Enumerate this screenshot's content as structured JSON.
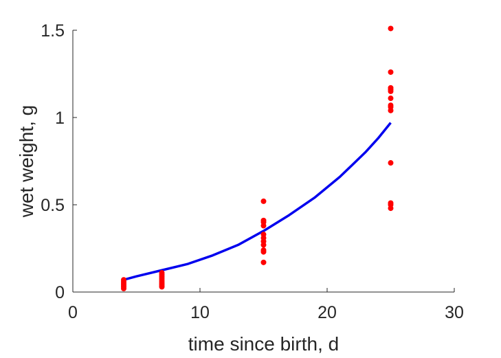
{
  "chart_data": {
    "type": "scatter",
    "title": "",
    "xlabel": "time since birth, d",
    "ylabel": "wet weight, g",
    "xlim": [
      0,
      30
    ],
    "ylim": [
      0,
      1.5
    ],
    "xticks": [
      "0",
      "10",
      "20",
      "30"
    ],
    "yticks": [
      "0",
      "0.5",
      "1",
      "1.5"
    ],
    "grid": false,
    "legend": "none",
    "series": [
      {
        "type": "scatter",
        "color": "#ff0000",
        "points": [
          {
            "x": 4,
            "y": 0.02
          },
          {
            "x": 4,
            "y": 0.03
          },
          {
            "x": 4,
            "y": 0.04
          },
          {
            "x": 4,
            "y": 0.05
          },
          {
            "x": 4,
            "y": 0.06
          },
          {
            "x": 4,
            "y": 0.07
          },
          {
            "x": 7,
            "y": 0.03
          },
          {
            "x": 7,
            "y": 0.04
          },
          {
            "x": 7,
            "y": 0.05
          },
          {
            "x": 7,
            "y": 0.06
          },
          {
            "x": 7,
            "y": 0.07
          },
          {
            "x": 7,
            "y": 0.08
          },
          {
            "x": 7,
            "y": 0.09
          },
          {
            "x": 7,
            "y": 0.1
          },
          {
            "x": 7,
            "y": 0.11
          },
          {
            "x": 15,
            "y": 0.17
          },
          {
            "x": 15,
            "y": 0.23
          },
          {
            "x": 15,
            "y": 0.24
          },
          {
            "x": 15,
            "y": 0.27
          },
          {
            "x": 15,
            "y": 0.29
          },
          {
            "x": 15,
            "y": 0.31
          },
          {
            "x": 15,
            "y": 0.33
          },
          {
            "x": 15,
            "y": 0.38
          },
          {
            "x": 15,
            "y": 0.4
          },
          {
            "x": 15,
            "y": 0.41
          },
          {
            "x": 15,
            "y": 0.52
          },
          {
            "x": 25,
            "y": 0.48
          },
          {
            "x": 25,
            "y": 0.5
          },
          {
            "x": 25,
            "y": 0.51
          },
          {
            "x": 25,
            "y": 0.74
          },
          {
            "x": 25,
            "y": 1.04
          },
          {
            "x": 25,
            "y": 1.06
          },
          {
            "x": 25,
            "y": 1.07
          },
          {
            "x": 25,
            "y": 1.11
          },
          {
            "x": 25,
            "y": 1.15
          },
          {
            "x": 25,
            "y": 1.16
          },
          {
            "x": 25,
            "y": 1.17
          },
          {
            "x": 25,
            "y": 1.26
          },
          {
            "x": 25,
            "y": 1.51
          }
        ]
      },
      {
        "type": "line",
        "color": "#0000ee",
        "points": [
          {
            "x": 4,
            "y": 0.07
          },
          {
            "x": 5,
            "y": 0.09
          },
          {
            "x": 7,
            "y": 0.125
          },
          {
            "x": 9,
            "y": 0.16
          },
          {
            "x": 11,
            "y": 0.21
          },
          {
            "x": 13,
            "y": 0.27
          },
          {
            "x": 15,
            "y": 0.35
          },
          {
            "x": 17,
            "y": 0.44
          },
          {
            "x": 19,
            "y": 0.54
          },
          {
            "x": 21,
            "y": 0.66
          },
          {
            "x": 23,
            "y": 0.8
          },
          {
            "x": 24,
            "y": 0.88
          },
          {
            "x": 25,
            "y": 0.97
          }
        ]
      }
    ]
  }
}
